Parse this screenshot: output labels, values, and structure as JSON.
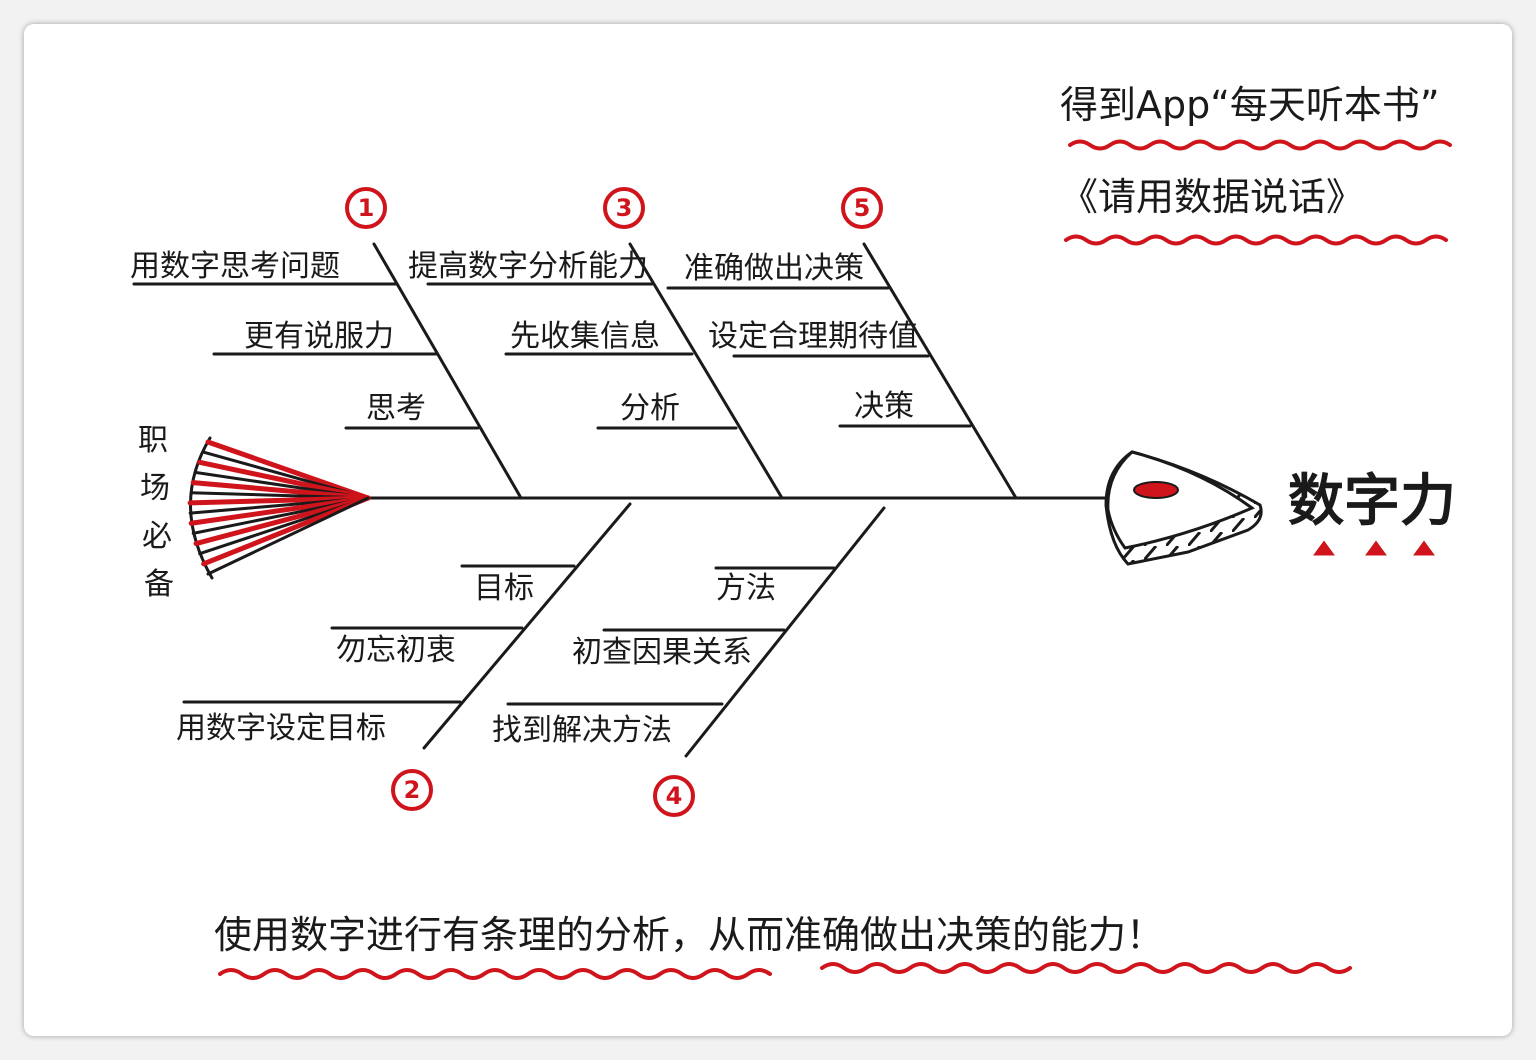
{
  "header": {
    "line1": "得到App“每天听本书”",
    "line2": "《请用数据说话》"
  },
  "tail_label": [
    "职",
    "场",
    "必",
    "备"
  ],
  "head_label": "数字力",
  "bones": {
    "b1": {
      "number": "1",
      "items": [
        "用数字思考问题",
        "更有说服力",
        "思考"
      ]
    },
    "b2": {
      "number": "2",
      "items": [
        "目标",
        "勿忘初衷",
        "用数字设定目标"
      ]
    },
    "b3": {
      "number": "3",
      "items": [
        "提高数字分析能力",
        "先收集信息",
        "分析"
      ]
    },
    "b4": {
      "number": "4",
      "items": [
        "方法",
        "初查因果关系",
        "找到解决方法"
      ]
    },
    "b5": {
      "number": "5",
      "items": [
        "准确做出决策",
        "设定合理期待值",
        "决策"
      ]
    }
  },
  "footer": "使用数字进行有条理的分析，从而准确做出决策的能力！",
  "colors": {
    "ink": "#1a1a1a",
    "accent": "#d0141c",
    "background": "#ffffff"
  }
}
